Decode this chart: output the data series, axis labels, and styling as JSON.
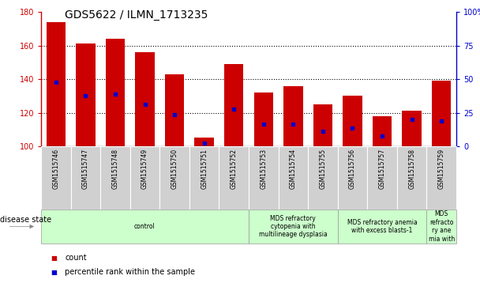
{
  "title": "GDS5622 / ILMN_1713235",
  "samples": [
    "GSM1515746",
    "GSM1515747",
    "GSM1515748",
    "GSM1515749",
    "GSM1515750",
    "GSM1515751",
    "GSM1515752",
    "GSM1515753",
    "GSM1515754",
    "GSM1515755",
    "GSM1515756",
    "GSM1515757",
    "GSM1515758",
    "GSM1515759"
  ],
  "counts": [
    174,
    161,
    164,
    156,
    143,
    105,
    149,
    132,
    136,
    125,
    130,
    118,
    121,
    139
  ],
  "percentile_values": [
    138,
    130,
    131,
    125,
    119,
    102,
    122,
    113,
    113,
    109,
    111,
    106,
    116,
    115
  ],
  "ylim_left": [
    100,
    180
  ],
  "ylim_right": [
    0,
    100
  ],
  "yticks_left": [
    100,
    120,
    140,
    160,
    180
  ],
  "yticks_right": [
    0,
    25,
    50,
    75,
    100
  ],
  "bar_color": "#cc0000",
  "percentile_color": "#0000cc",
  "bar_bottom": 100,
  "disease_groups": [
    {
      "label": "control",
      "start": 0,
      "end": 7,
      "color": "#ccffcc"
    },
    {
      "label": "MDS refractory\ncytopenia with\nmultilineage dysplasia",
      "start": 7,
      "end": 10,
      "color": "#ccffcc"
    },
    {
      "label": "MDS refractory anemia\nwith excess blasts-1",
      "start": 10,
      "end": 13,
      "color": "#ccffcc"
    },
    {
      "label": "MDS\nrefracto\nry ane\nmia with",
      "start": 13,
      "end": 14,
      "color": "#ccffcc"
    }
  ],
  "legend_count_label": "count",
  "legend_pct_label": "percentile rank within the sample",
  "disease_state_label": "disease state",
  "title_fontsize": 10,
  "tick_fontsize": 7,
  "sample_fontsize": 5.5,
  "disease_fontsize": 5.5,
  "legend_fontsize": 7
}
